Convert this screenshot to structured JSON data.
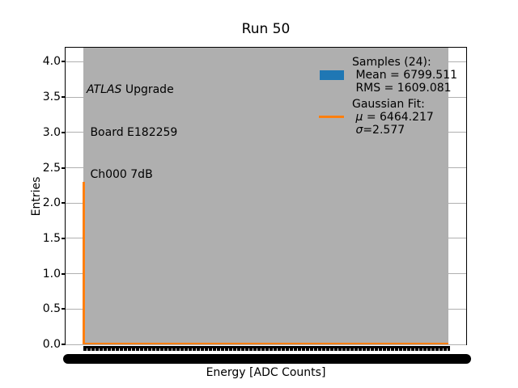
{
  "title": "Run 50",
  "annotation": {
    "line1_italic": "ATLAS",
    "line1_rest": " Upgrade",
    "line2": " Board E182259",
    "line3": " Ch000 7dB"
  },
  "legend": {
    "samples_header": "Samples (24):",
    "mean_line": " Mean = 6799.511",
    "rms_line": " RMS = 1609.081",
    "fit_header": "Gaussian Fit:",
    "mu_sym": "μ",
    "mu_rest": " = 6464.217",
    "sigma_sym": "σ",
    "sigma_rest": "=2.577"
  },
  "chart_data": {
    "type": "bar",
    "subtype": "histogram-with-gaussian-fit",
    "title": "Run 50",
    "xlabel": "Energy [ADC Counts]",
    "ylabel": "Entries",
    "ylim": [
      0,
      4.2
    ],
    "yticks": [
      0,
      0.5,
      1.0,
      1.5,
      2.0,
      2.5,
      3.0,
      3.5,
      4.0
    ],
    "ytick_labels": [
      "0.0",
      "0.5",
      "1.0",
      "1.5",
      "2.0",
      "2.5",
      "3.0",
      "3.5",
      "4.0"
    ],
    "grid": true,
    "legend_position": "upper right",
    "x_tick_labels_overlapped_unreadable": true,
    "samples": {
      "n": 24,
      "mean": 6799.511,
      "rms": 1609.081,
      "color": "#1f77b4"
    },
    "gaussian_fit": {
      "mu": 6464.217,
      "sigma": 2.577,
      "peak_height": 2.3,
      "color": "#ff7f0e"
    },
    "dense_tick_band": {
      "color": "#afafaf",
      "x_frac_start": 0.046,
      "x_frac_end": 0.954
    }
  }
}
